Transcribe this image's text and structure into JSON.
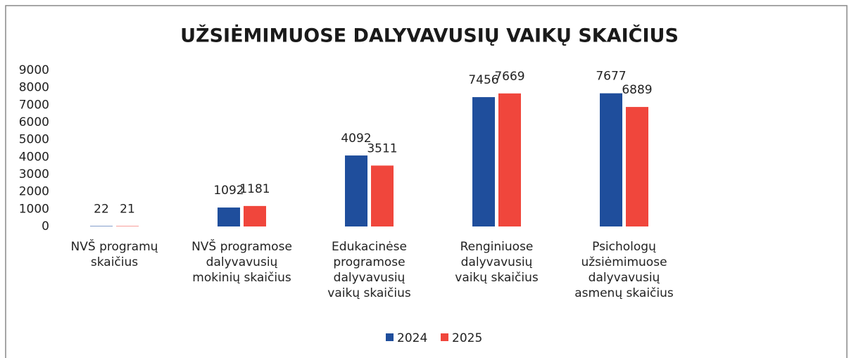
{
  "chart_data": {
    "type": "bar",
    "title": "UŽSIĖMIMUOSE DALYVAVUSIŲ VAIKŲ SKAIČIUS",
    "categories": [
      "NVŠ programų skaičius",
      "NVŠ programose dalyvavusių mokinių skaičius",
      "Edukacinėse programose dalyvavusių vaikų skaičius",
      "Renginiuose dalyvavusių vaikų skaičius",
      "Psichologų užsiėmimuose dalyvavusių asmenų skaičius"
    ],
    "series": [
      {
        "name": "2024",
        "color": "#1f4e9c",
        "values": [
          22,
          1092,
          4092,
          7456,
          7677
        ]
      },
      {
        "name": "2025",
        "color": "#f0463c",
        "values": [
          21,
          1181,
          3511,
          7669,
          6889
        ]
      }
    ],
    "ylim": [
      0,
      9000
    ],
    "yticks": [
      0,
      1000,
      2000,
      3000,
      4000,
      5000,
      6000,
      7000,
      8000,
      9000
    ],
    "grid": false,
    "legend": "bottom"
  }
}
